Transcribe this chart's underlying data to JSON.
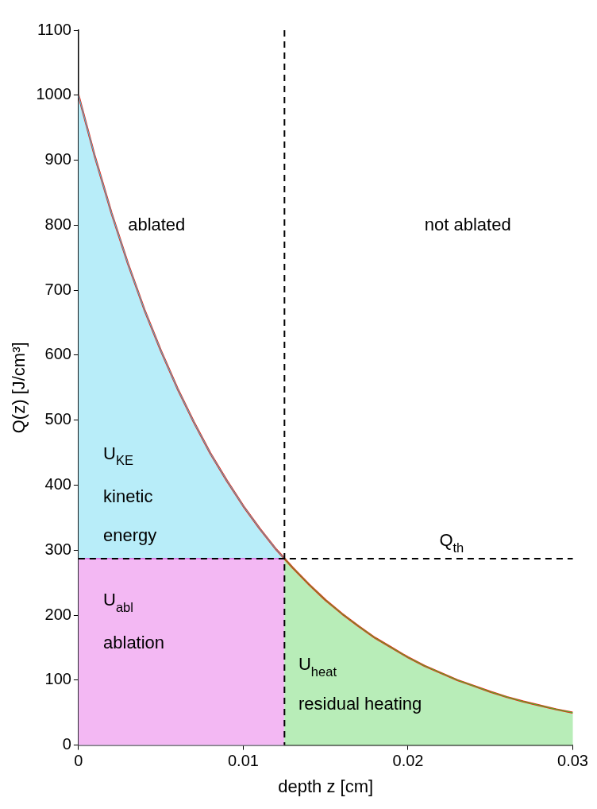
{
  "chart_data": {
    "type": "line",
    "xlabel": "depth z [cm]",
    "ylabel": "Q(z) [J/cm³]",
    "xlim": [
      0,
      0.03
    ],
    "xticks": [
      0,
      0.01,
      0.02,
      0.03
    ],
    "ylim": [
      0,
      1100
    ],
    "yticks": [
      0,
      100,
      200,
      300,
      400,
      500,
      600,
      700,
      800,
      900,
      1000,
      1100
    ],
    "grid": false,
    "legend": false,
    "series": [
      {
        "type": "area",
        "color": "#33ccee",
        "x": [
          0,
          0.001,
          0.002,
          0.003,
          0.004,
          0.005,
          0.006,
          0.007,
          0.008,
          0.009,
          0.01,
          0.011,
          0.012,
          0.0125
        ],
        "values": [
          1000,
          905,
          819,
          741,
          670,
          607,
          549,
          497,
          449,
          407,
          368,
          333,
          301,
          287
        ]
      },
      {
        "type": "area",
        "color": "#dd33dd",
        "x": [
          0,
          0.0125
        ],
        "values": [
          287,
          287
        ]
      },
      {
        "type": "area",
        "color": "#33cc33",
        "x": [
          0.0125,
          0.013,
          0.014,
          0.015,
          0.016,
          0.017,
          0.018,
          0.019,
          0.02,
          0.021,
          0.022,
          0.023,
          0.024,
          0.025,
          0.026,
          0.027,
          0.028,
          0.029,
          0.03
        ],
        "values": [
          287,
          273,
          247,
          223,
          202,
          183,
          165,
          150,
          135,
          122,
          111,
          100,
          91,
          82,
          74,
          67,
          61,
          55,
          50
        ]
      },
      {
        "type": "line",
        "color": "#ee2211",
        "x": [
          0,
          0.001,
          0.002,
          0.003,
          0.004,
          0.005,
          0.006,
          0.007,
          0.008,
          0.009,
          0.01,
          0.011,
          0.012,
          0.0125,
          0.013,
          0.014,
          0.015,
          0.016,
          0.017,
          0.018,
          0.019,
          0.02,
          0.021,
          0.022,
          0.023,
          0.024,
          0.025,
          0.026,
          0.027,
          0.028,
          0.029,
          0.03
        ],
        "values": [
          1000,
          905,
          819,
          741,
          670,
          607,
          549,
          497,
          449,
          407,
          368,
          333,
          301,
          287,
          273,
          247,
          223,
          202,
          183,
          165,
          150,
          135,
          122,
          111,
          100,
          91,
          82,
          74,
          67,
          61,
          55,
          50
        ]
      }
    ],
    "ref_lines": [
      {
        "axis": "x",
        "value": 0.0125,
        "line_style": "dashed",
        "color": "#000000"
      },
      {
        "axis": "y",
        "value": 287,
        "label": "Q$_{th}$",
        "line_style": "dashed",
        "color": "#000000"
      }
    ],
    "annotations": [
      "ablated",
      "not ablated",
      "U$_{KE}$",
      "kinetic",
      "energy",
      "U$_{abl}$",
      "ablation",
      "U$_{heat}$",
      "residual heating"
    ]
  }
}
